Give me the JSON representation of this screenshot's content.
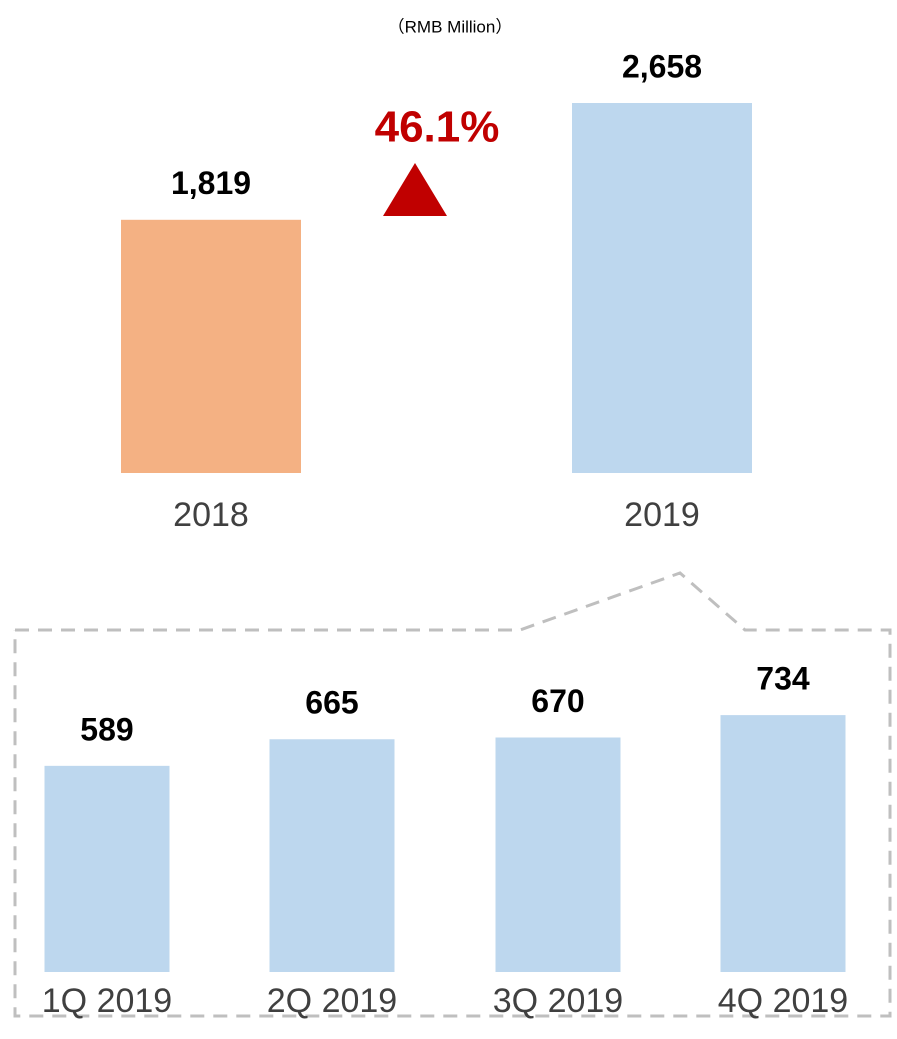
{
  "chart_data": [
    {
      "type": "bar",
      "subtitle": "（RMB Million）",
      "annotation": "46.1%",
      "categories": [
        "2018",
        "2019"
      ],
      "values": [
        1819,
        2658
      ],
      "value_labels": [
        "1,819",
        "2,658"
      ],
      "colors": [
        "#f4b183",
        "#bdd7ee"
      ],
      "annotation_color": "#c00000"
    },
    {
      "type": "bar",
      "categories": [
        "1Q 2019",
        "2Q 2019",
        "3Q 2019",
        "4Q 2019"
      ],
      "values": [
        589,
        665,
        670,
        734
      ],
      "color": "#bdd7ee"
    }
  ]
}
